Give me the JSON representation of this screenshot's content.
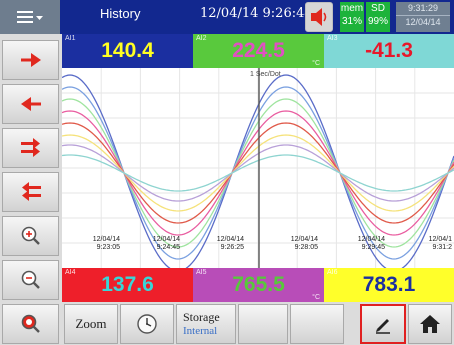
{
  "header": {
    "title": "History",
    "datetime": "12/04/14 9:26:44",
    "mem_label": "mem",
    "mem_value": "31%",
    "sd_label": "SD",
    "sd_value": "99%",
    "clock_time": "9:31:29",
    "clock_date": "12/04/14"
  },
  "channels_top": [
    {
      "tag": "AI1",
      "value": "140.4",
      "unit": "",
      "bg": "#1b2fa0",
      "fg": "#ffff22"
    },
    {
      "tag": "AI2",
      "value": "224.5",
      "unit": "°C",
      "bg": "#59c93d",
      "fg": "#e14fc3"
    },
    {
      "tag": "AI3",
      "value": "-41.3",
      "unit": "",
      "bg": "#7fd8d6",
      "fg": "#e8172a"
    }
  ],
  "channels_bottom": [
    {
      "tag": "AI4",
      "value": "137.6",
      "unit": "",
      "bg": "#ee1f2a",
      "fg": "#39d6d8"
    },
    {
      "tag": "AI5",
      "value": "765.5",
      "unit": "°C",
      "bg": "#b84db8",
      "fg": "#58c83b"
    },
    {
      "tag": "AI6",
      "value": "783.1",
      "unit": "",
      "bg": "#ffff2a",
      "fg": "#1b2fa0"
    }
  ],
  "chart": {
    "rate_label": "1 Sec/Dot",
    "time_labels": [
      {
        "date": "12/04/14",
        "time": "9:23:05"
      },
      {
        "date": "12/04/14",
        "time": "9:24:45"
      },
      {
        "date": "12/04/14",
        "time": "9:26:25"
      },
      {
        "date": "12/04/14",
        "time": "9:28:05"
      },
      {
        "date": "12/04/14",
        "time": "9:29:45"
      },
      {
        "date": "12/04/1",
        "time": "9:31:2"
      }
    ],
    "colors": [
      "#5a6cc8",
      "#7aa0e0",
      "#9fe49f",
      "#e95da0",
      "#e05a4a",
      "#f5e27a",
      "#b8a0d8",
      "#8ed4d0"
    ]
  },
  "left_buttons": [
    "scroll-right-icon",
    "scroll-left-icon",
    "fast-forward-icon",
    "fast-backward-icon",
    "zoom-in-icon",
    "zoom-out-icon",
    "zoom-reset-icon"
  ],
  "toolbar": {
    "zoom_label": "Zoom",
    "storage_label": "Storage",
    "storage_value": "Internal"
  }
}
